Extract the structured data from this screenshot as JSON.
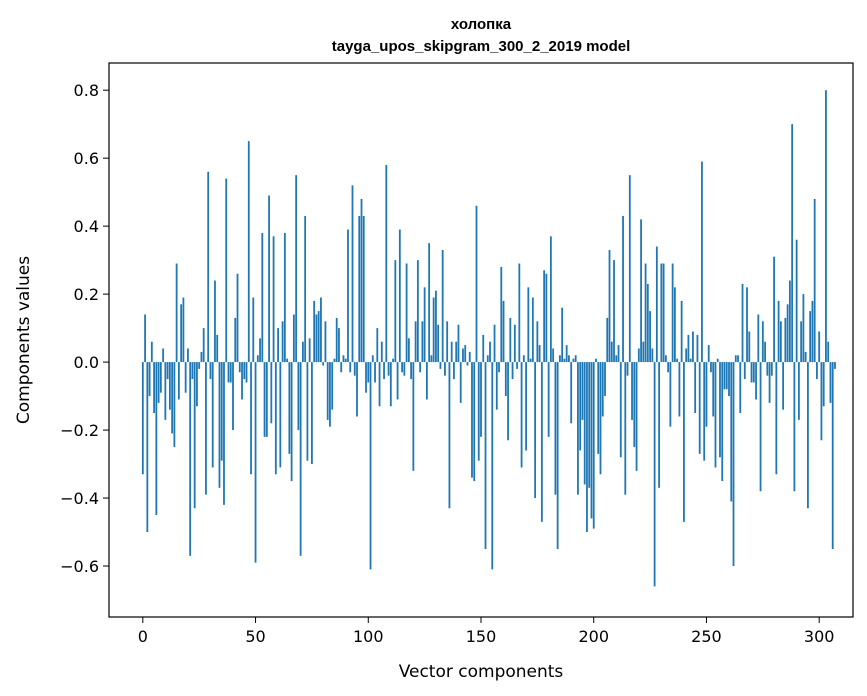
{
  "chart_data": {
    "type": "bar",
    "title": "холопка",
    "subtitle": "tayga_upos_skipgram_300_2_2019 model",
    "xlabel": "Vector components",
    "ylabel": "Components values",
    "xlim": [
      -15,
      315
    ],
    "ylim": [
      -0.75,
      0.88
    ],
    "xticks": [
      0,
      50,
      100,
      150,
      200,
      250,
      300
    ],
    "yticks": [
      -0.6,
      -0.4,
      -0.2,
      0.0,
      0.2,
      0.4,
      0.6,
      0.8
    ],
    "ytick_labels": [
      "−0.6",
      "−0.4",
      "−0.2",
      "0.0",
      "0.2",
      "0.4",
      "0.6",
      "0.8"
    ],
    "bar_color": "#1f77b4",
    "grid": false,
    "values": [
      -0.33,
      0.14,
      -0.5,
      -0.1,
      0.06,
      -0.15,
      -0.45,
      -0.12,
      -0.09,
      0.04,
      -0.17,
      -0.05,
      -0.14,
      -0.21,
      -0.25,
      0.29,
      -0.11,
      0.17,
      0.19,
      -0.09,
      0.04,
      -0.57,
      -0.05,
      -0.43,
      -0.13,
      -0.02,
      0.03,
      0.1,
      -0.39,
      0.56,
      -0.05,
      -0.31,
      0.24,
      0.08,
      -0.37,
      -0.29,
      -0.42,
      0.54,
      -0.06,
      -0.06,
      -0.2,
      0.13,
      0.26,
      -0.03,
      -0.11,
      -0.05,
      -0.06,
      0.65,
      -0.33,
      0.19,
      -0.59,
      0.02,
      0.07,
      0.38,
      -0.22,
      -0.22,
      0.49,
      -0.18,
      0.37,
      -0.33,
      0.1,
      -0.31,
      0.12,
      0.38,
      0.01,
      -0.27,
      -0.35,
      0.14,
      0.55,
      -0.2,
      -0.57,
      0.06,
      0.43,
      -0.29,
      0.07,
      -0.3,
      0.18,
      0.14,
      0.15,
      0.19,
      -0.01,
      0.12,
      -0.17,
      -0.19,
      -0.14,
      0.01,
      0.13,
      0.1,
      -0.03,
      0.02,
      0.01,
      0.39,
      -0.03,
      0.52,
      -0.04,
      -0.16,
      0.43,
      0.48,
      0.43,
      -0.09,
      -0.06,
      -0.61,
      0.02,
      -0.06,
      0.1,
      -0.13,
      0.06,
      -0.05,
      0.58,
      -0.04,
      -0.13,
      0.01,
      0.3,
      -0.11,
      0.39,
      -0.03,
      -0.04,
      0.29,
      0.07,
      -0.05,
      -0.32,
      0.12,
      0.3,
      -0.03,
      0.12,
      0.22,
      -0.11,
      0.35,
      0.02,
      0.19,
      0.21,
      0.11,
      -0.02,
      0.33,
      -0.04,
      0.12,
      -0.43,
      0.06,
      -0.05,
      0.06,
      0.11,
      -0.12,
      0.04,
      0.05,
      -0.01,
      0.03,
      -0.34,
      -0.35,
      0.46,
      -0.29,
      -0.22,
      0.08,
      -0.55,
      0.02,
      0.06,
      -0.61,
      0.11,
      -0.14,
      -0.03,
      0.28,
      0.18,
      -0.1,
      -0.23,
      0.13,
      -0.05,
      0.11,
      -0.02,
      0.29,
      -0.31,
      0.02,
      -0.26,
      0.22,
      0.01,
      0.19,
      -0.4,
      0.12,
      0.05,
      -0.47,
      0.27,
      0.26,
      -0.22,
      0.37,
      0.04,
      -0.39,
      -0.55,
      0.02,
      0.16,
      0.01,
      0.05,
      0.02,
      -0.18,
      0.01,
      0.02,
      -0.39,
      -0.26,
      -0.17,
      -0.36,
      -0.5,
      -0.37,
      -0.46,
      -0.49,
      0.01,
      -0.27,
      -0.33,
      -0.16,
      -0.1,
      0.13,
      0.33,
      0.06,
      0.3,
      0.02,
      0.05,
      -0.28,
      0.43,
      -0.39,
      -0.04,
      0.55,
      -0.17,
      -0.25,
      -0.32,
      0.04,
      0.42,
      0.06,
      0.29,
      0.23,
      0.15,
      0.04,
      -0.66,
      0.34,
      -0.37,
      0.29,
      0.29,
      0.02,
      -0.03,
      -0.19,
      0.29,
      0.22,
      0.01,
      -0.16,
      0.18,
      -0.47,
      0.04,
      0.08,
      0.01,
      0.09,
      -0.15,
      0.08,
      -0.27,
      0.59,
      -0.29,
      -0.19,
      0.05,
      -0.03,
      -0.16,
      -0.31,
      0.01,
      -0.28,
      -0.35,
      -0.08,
      -0.08,
      -0.1,
      -0.41,
      -0.6,
      0.02,
      0.02,
      -0.15,
      0.23,
      -0.05,
      0.22,
      0.09,
      -0.06,
      -0.06,
      -0.11,
      0.14,
      -0.38,
      0.12,
      0.06,
      -0.04,
      -0.12,
      -0.04,
      0.31,
      -0.33,
      0.18,
      0.12,
      -0.14,
      0.13,
      0.17,
      0.24,
      0.7,
      -0.38,
      0.36,
      -0.17,
      0.12,
      0.2,
      0.03,
      -0.43,
      0.15,
      0.18,
      0.48,
      -0.05,
      0.09,
      -0.23,
      -0.13,
      0.8,
      0.06,
      -0.12,
      -0.55,
      -0.02
    ]
  }
}
